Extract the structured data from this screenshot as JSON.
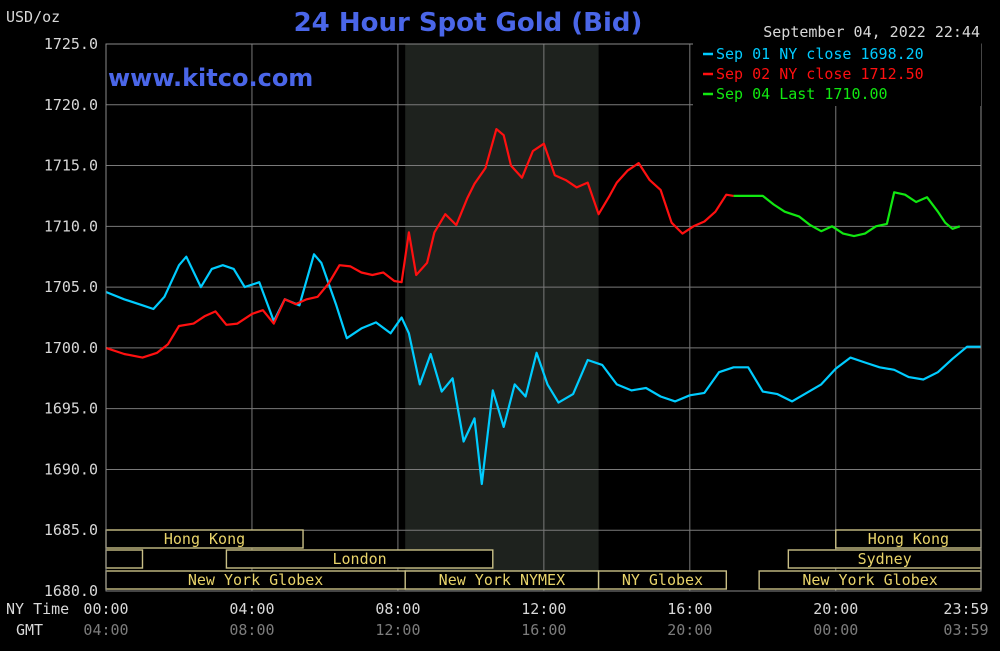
{
  "chart_data": {
    "type": "line",
    "title": "24 Hour Spot Gold (Bid)",
    "watermark": "www.kitco.com",
    "timestamp": "September 04, 2022 22:44",
    "unit_label": "USD/oz",
    "ylim": [
      1680,
      1725
    ],
    "y_ticks": [
      "1725.0",
      "1720.0",
      "1715.0",
      "1710.0",
      "1705.0",
      "1700.0",
      "1695.0",
      "1690.0",
      "1685.0",
      "1680.0"
    ],
    "y_tick_values": [
      1725,
      1720,
      1715,
      1710,
      1705,
      1700,
      1695,
      1690,
      1685,
      1680
    ],
    "x_axis_rows": [
      {
        "label": "NY Time",
        "ticks": [
          "00:00",
          "04:00",
          "08:00",
          "12:00",
          "16:00",
          "20:00",
          "23:59"
        ]
      },
      {
        "label": "GMT",
        "ticks": [
          "04:00",
          "08:00",
          "12:00",
          "16:00",
          "20:00",
          "00:00",
          "03:59"
        ]
      }
    ],
    "x_tick_hours": [
      0,
      4,
      8,
      12,
      16,
      20,
      23.98
    ],
    "xlim_hours": [
      0,
      23.98
    ],
    "shaded_session_hours": [
      8.2,
      13.5
    ],
    "legend": [
      {
        "label": "Sep 01 NY close 1698.20",
        "color": "#00ccff"
      },
      {
        "label": "Sep 02 NY close 1712.50",
        "color": "#ff1010"
      },
      {
        "label": "Sep 04 Last 1710.00",
        "color": "#11e811"
      }
    ],
    "sessions": [
      {
        "row": 0,
        "label": "Hong Kong",
        "start": 0.0,
        "end": 5.4
      },
      {
        "row": 0,
        "label": "Hong Kong",
        "start": 20.0,
        "end": 24.0
      },
      {
        "row": 1,
        "label": "",
        "start": 0.0,
        "end": 1.0
      },
      {
        "row": 1,
        "label": "London",
        "start": 3.3,
        "end": 10.6
      },
      {
        "row": 1,
        "label": "Sydney",
        "start": 18.7,
        "end": 24.0
      },
      {
        "row": 2,
        "label": "New York Globex",
        "start": 0.0,
        "end": 8.2
      },
      {
        "row": 2,
        "label": "New York NYMEX",
        "start": 8.2,
        "end": 13.5
      },
      {
        "row": 2,
        "label": "NY Globex",
        "start": 13.5,
        "end": 17.0
      },
      {
        "row": 2,
        "label": "New York Globex",
        "start": 17.9,
        "end": 24.0
      }
    ],
    "series": [
      {
        "name": "Sep 01",
        "color": "#00ccff",
        "x": [
          0,
          0.5,
          1,
          1.3,
          1.6,
          2.0,
          2.2,
          2.6,
          2.9,
          3.2,
          3.5,
          3.8,
          4.2,
          4.6,
          4.9,
          5.3,
          5.7,
          5.9,
          6.3,
          6.6,
          7.0,
          7.4,
          7.8,
          8.1,
          8.3,
          8.6,
          8.9,
          9.2,
          9.5,
          9.8,
          10.1,
          10.3,
          10.6,
          10.9,
          11.2,
          11.5,
          11.8,
          12.1,
          12.4,
          12.8,
          13.2,
          13.6,
          14.0,
          14.4,
          14.8,
          15.2,
          15.6,
          16.0,
          16.4,
          16.8,
          17.2,
          17.6,
          18.0,
          18.4,
          18.8,
          19.2,
          19.6,
          20.0,
          20.4,
          20.8,
          21.2,
          21.6,
          22.0,
          22.4,
          22.8,
          23.2,
          23.6,
          23.98
        ],
        "y": [
          1704.6,
          1704.0,
          1703.5,
          1703.2,
          1704.2,
          1706.8,
          1707.5,
          1705.0,
          1706.5,
          1706.8,
          1706.5,
          1705.0,
          1705.4,
          1702.2,
          1704.0,
          1703.5,
          1707.7,
          1707.0,
          1703.6,
          1700.8,
          1701.6,
          1702.1,
          1701.2,
          1702.5,
          1701.2,
          1697.0,
          1699.5,
          1696.4,
          1697.5,
          1692.3,
          1694.2,
          1688.8,
          1696.5,
          1693.5,
          1697.0,
          1696.0,
          1699.6,
          1697.0,
          1695.5,
          1696.2,
          1699.0,
          1698.6,
          1697.0,
          1696.5,
          1696.7,
          1696.0,
          1695.6,
          1696.1,
          1696.3,
          1698.0,
          1698.4,
          1698.4,
          1696.4,
          1696.2,
          1695.6,
          1696.3,
          1697.0,
          1698.3,
          1699.2,
          1698.8,
          1698.4,
          1698.2,
          1697.6,
          1697.4,
          1698.0,
          1699.1,
          1700.1,
          1700.1
        ]
      },
      {
        "name": "Sep 02",
        "color": "#ff1010",
        "x": [
          0,
          0.5,
          1.0,
          1.4,
          1.7,
          2.0,
          2.4,
          2.7,
          3.0,
          3.3,
          3.6,
          4.0,
          4.3,
          4.6,
          4.9,
          5.2,
          5.5,
          5.8,
          6.1,
          6.4,
          6.7,
          7.0,
          7.3,
          7.6,
          7.9,
          8.1,
          8.3,
          8.5,
          8.8,
          9.0,
          9.3,
          9.6,
          9.9,
          10.1,
          10.4,
          10.7,
          10.9,
          11.1,
          11.4,
          11.7,
          12.0,
          12.3,
          12.6,
          12.9,
          13.2,
          13.5,
          13.8,
          14.0,
          14.3,
          14.6,
          14.9,
          15.2,
          15.5,
          15.8,
          16.1,
          16.4,
          16.7,
          17.0,
          17.2
        ],
        "y": [
          1700.0,
          1699.5,
          1699.2,
          1699.6,
          1700.3,
          1701.8,
          1702.0,
          1702.6,
          1703.0,
          1701.9,
          1702.0,
          1702.8,
          1703.1,
          1702.0,
          1704.0,
          1703.6,
          1704.0,
          1704.2,
          1705.3,
          1706.8,
          1706.7,
          1706.2,
          1706.0,
          1706.2,
          1705.5,
          1705.4,
          1709.5,
          1706.0,
          1707.0,
          1709.5,
          1711.0,
          1710.1,
          1712.3,
          1713.5,
          1714.8,
          1718.0,
          1717.5,
          1715.0,
          1714.0,
          1716.2,
          1716.8,
          1714.2,
          1713.8,
          1713.2,
          1713.6,
          1711.0,
          1712.5,
          1713.6,
          1714.6,
          1715.2,
          1713.8,
          1713.0,
          1710.3,
          1709.4,
          1710.0,
          1710.4,
          1711.2,
          1712.6,
          1712.5
        ]
      },
      {
        "name": "Sep 04",
        "color": "#11e811",
        "x": [
          17.2,
          17.6,
          18.0,
          18.3,
          18.6,
          19.0,
          19.3,
          19.6,
          19.9,
          20.2,
          20.5,
          20.8,
          21.1,
          21.4,
          21.6,
          21.9,
          22.2,
          22.5,
          22.8,
          23.0,
          23.2,
          23.4
        ],
        "y": [
          1712.5,
          1712.5,
          1712.5,
          1711.8,
          1711.2,
          1710.8,
          1710.1,
          1709.6,
          1710.0,
          1709.4,
          1709.2,
          1709.4,
          1710.0,
          1710.2,
          1712.8,
          1712.6,
          1712.0,
          1712.4,
          1711.2,
          1710.3,
          1709.8,
          1710.0
        ]
      }
    ]
  }
}
